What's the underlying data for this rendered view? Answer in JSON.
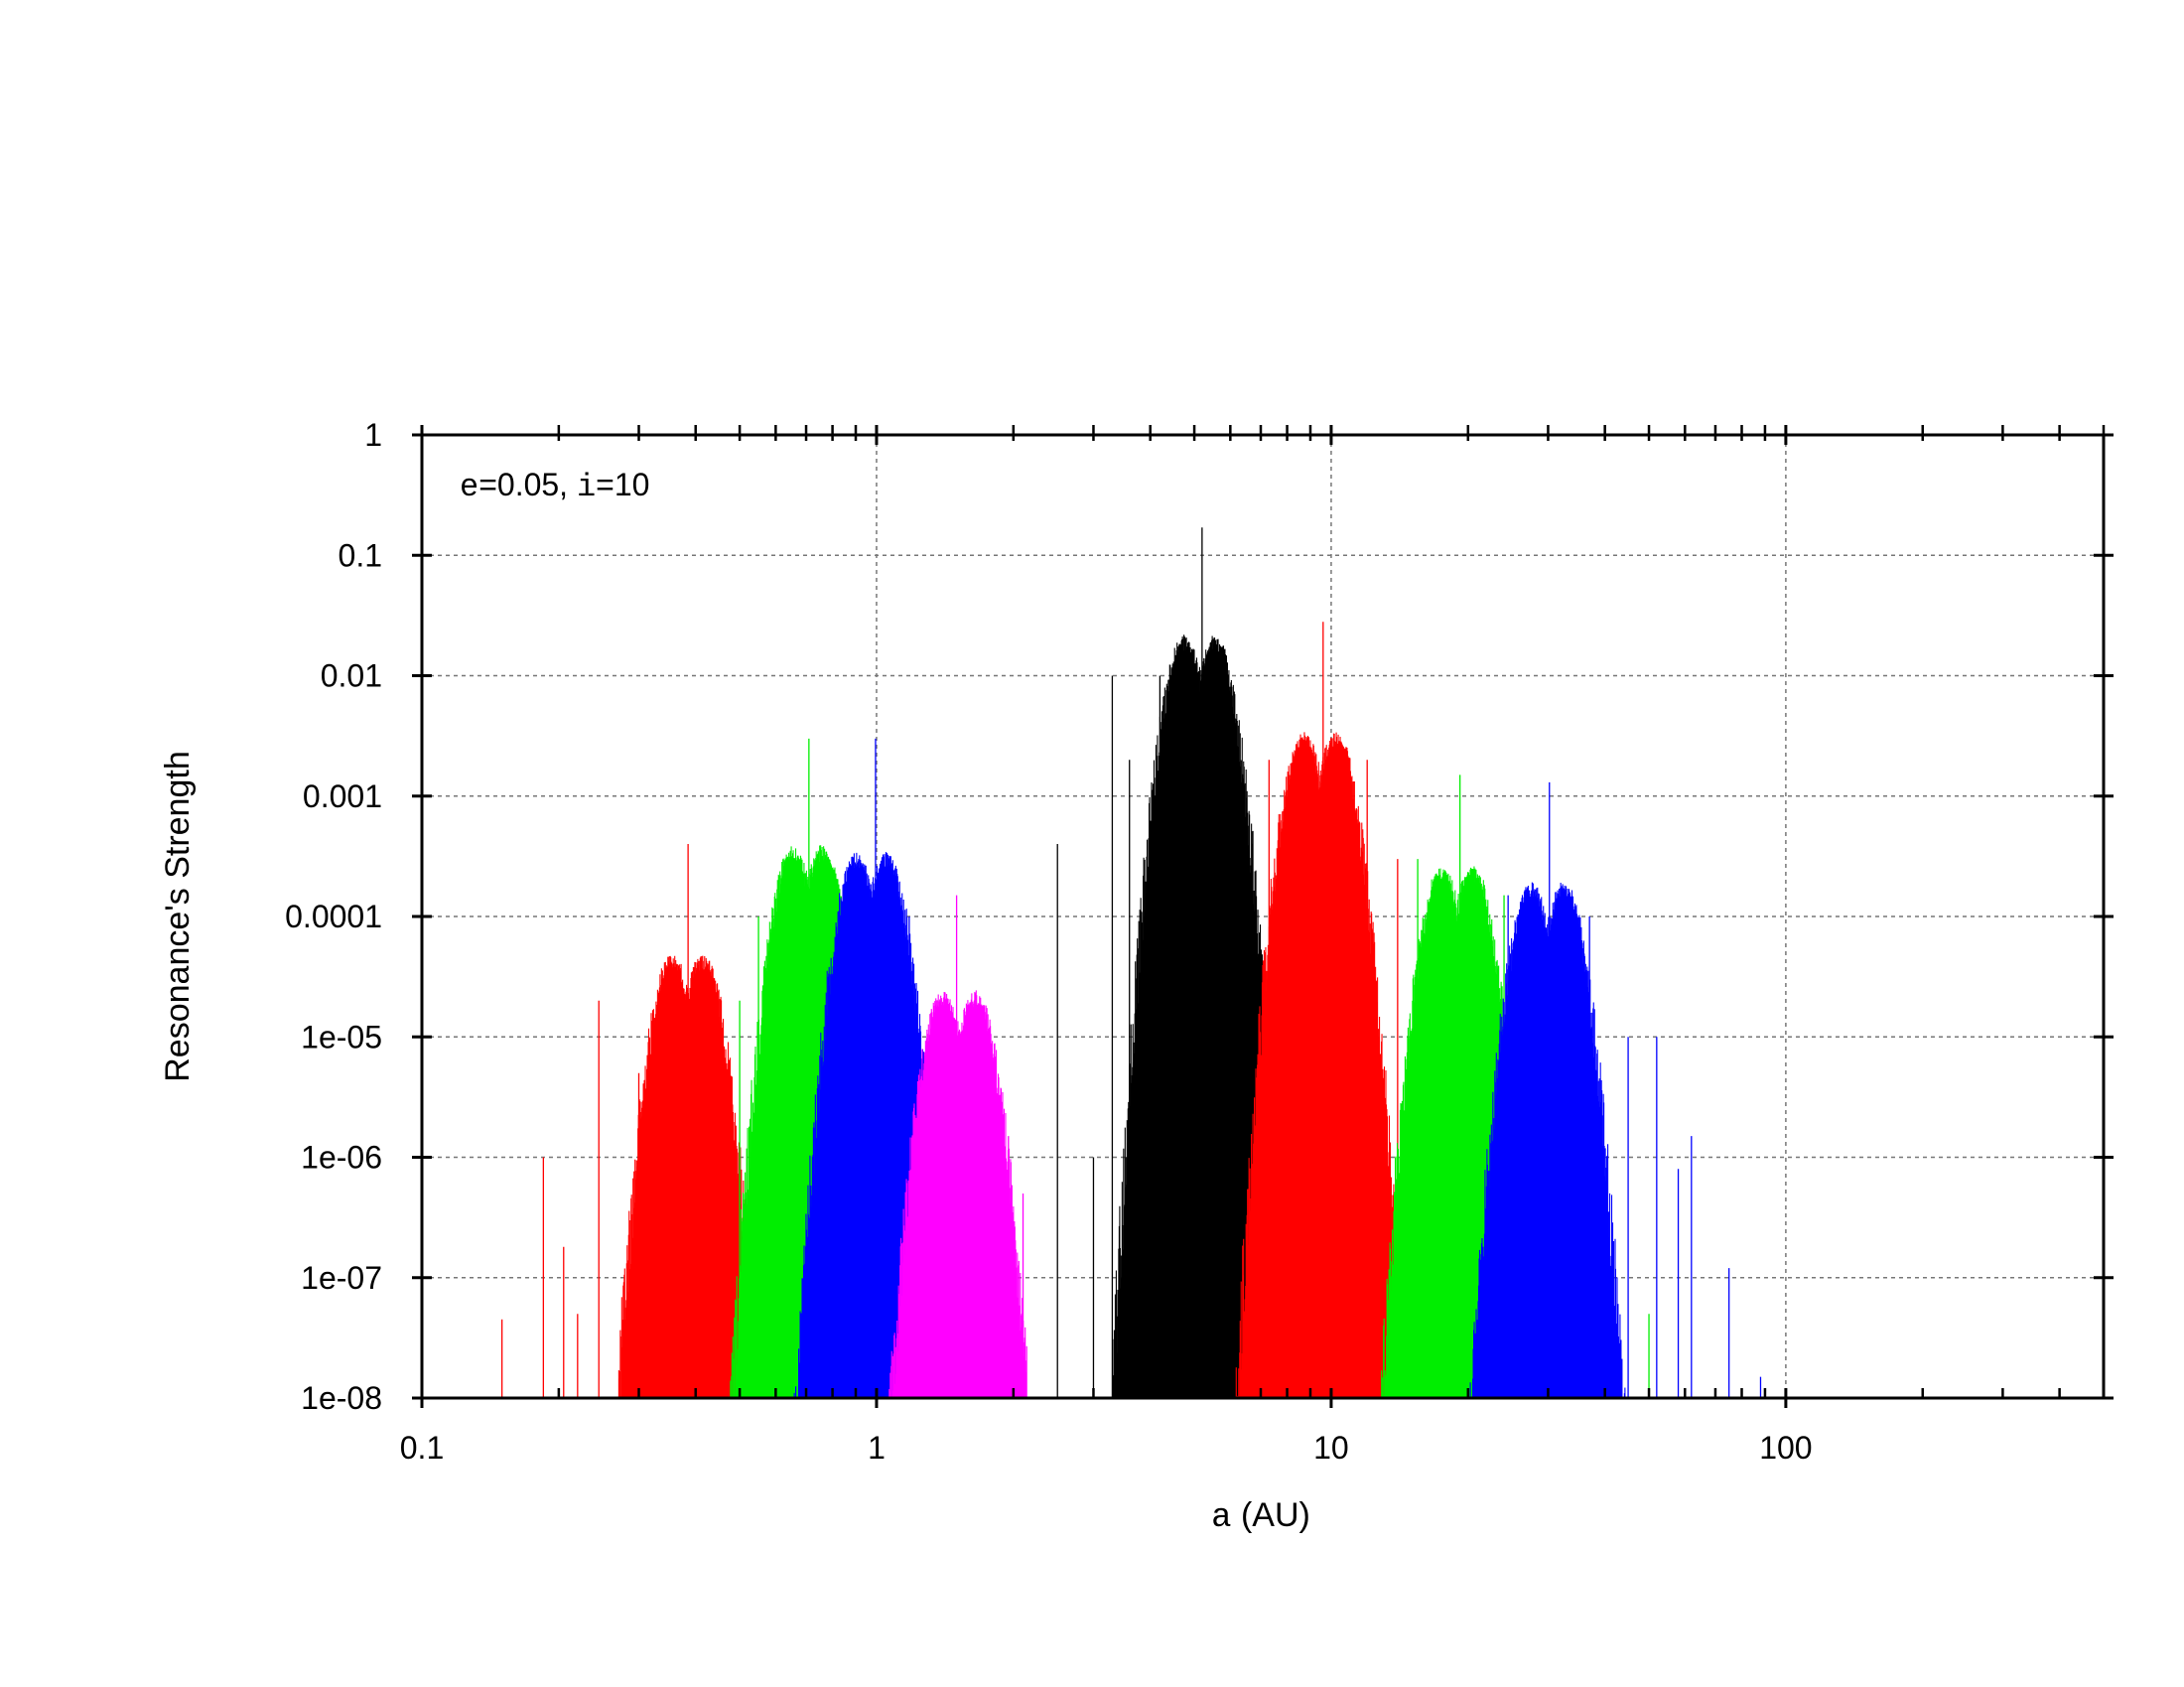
{
  "chart_data": {
    "type": "bar",
    "scale": {
      "x": "log",
      "y": "log"
    },
    "annotation": {
      "e_symbol": "e",
      "e_value": "=0.05, ",
      "i_symbol": "i",
      "i_value": "=10"
    },
    "xlabel": {
      "symbol": "a",
      "rest": " (AU)"
    },
    "ylabel": "Resonance's Strength",
    "xlim": [
      0.1,
      500
    ],
    "ylim": [
      1e-08,
      1
    ],
    "grid": true,
    "x_ticks": [
      "0.1",
      "1",
      "10",
      "100"
    ],
    "y_ticks": [
      "1e-08",
      "1e-07",
      "1e-06",
      "1e-05",
      "0.0001",
      "0.001",
      "0.01",
      "0.1",
      "1"
    ],
    "series": [
      {
        "color": "#ff0000",
        "clusters": [
          {
            "center": 0.355,
            "peak": 5e-05
          },
          {
            "center": 0.415,
            "peak": 5e-05
          }
        ],
        "spikes": [
          [
            0.15,
            4.5e-08
          ],
          [
            0.185,
            1e-06
          ],
          [
            0.205,
            1.8e-07
          ],
          [
            0.22,
            5e-08
          ],
          [
            0.245,
            2e-05
          ],
          [
            0.3,
            5e-06
          ],
          [
            0.385,
            0.0004
          ],
          [
            0.46,
            1e-06
          ]
        ]
      },
      {
        "color": "#00ee00",
        "clusters": [
          {
            "center": 0.655,
            "peak": 0.0004
          },
          {
            "center": 0.76,
            "peak": 0.0004
          }
        ],
        "spikes": [
          [
            0.5,
            2e-05
          ],
          [
            0.71,
            0.003
          ],
          [
            0.55,
            0.0001
          ]
        ]
      },
      {
        "color": "#0000ff",
        "clusters": [
          {
            "center": 0.905,
            "peak": 0.00035
          },
          {
            "center": 1.05,
            "peak": 0.00035
          }
        ],
        "spikes": [
          [
            0.995,
            0.003
          ],
          [
            1.18,
            0.0001
          ]
        ]
      },
      {
        "color": "#ff00ff",
        "clusters": [
          {
            "center": 1.4,
            "peak": 2.5e-05
          },
          {
            "center": 1.65,
            "peak": 2.5e-05
          }
        ],
        "spikes": [
          [
            1.5,
            0.00015
          ],
          [
            1.95,
            1.5e-06
          ],
          [
            2.1,
            5e-07
          ]
        ]
      },
      {
        "color": "#000000",
        "clusters": [
          {
            "center": 4.75,
            "peak": 0.022
          },
          {
            "center": 5.55,
            "peak": 0.022
          }
        ],
        "spikes": [
          [
            5.2,
            0.17
          ],
          [
            2.5,
            0.0004
          ],
          [
            3.3,
            0.01
          ],
          [
            3.0,
            1e-06
          ],
          [
            4.2,
            0.01
          ],
          [
            3.6,
            0.002
          ]
        ]
      },
      {
        "color": "#ff0000",
        "clusters": [
          {
            "center": 8.7,
            "peak": 0.0035
          },
          {
            "center": 10.25,
            "peak": 0.0035
          }
        ],
        "spikes": [
          [
            9.6,
            0.028
          ],
          [
            7.3,
            0.002
          ],
          [
            12.0,
            0.002
          ],
          [
            14.0,
            0.0003
          ]
        ]
      },
      {
        "color": "#00ee00",
        "clusters": [
          {
            "center": 17.5,
            "peak": 0.00027
          },
          {
            "center": 20.5,
            "peak": 0.00027
          }
        ],
        "spikes": [
          [
            19.2,
            0.0015
          ],
          [
            15.5,
            0.0003
          ],
          [
            24.0,
            0.00015
          ],
          [
            50.0,
            5e-08
          ]
        ]
      },
      {
        "color": "#0000ff",
        "clusters": [
          {
            "center": 27.5,
            "peak": 0.0002
          },
          {
            "center": 32.5,
            "peak": 0.0002
          }
        ],
        "spikes": [
          [
            30.2,
            0.0013
          ],
          [
            24.5,
            0.00015
          ],
          [
            37.0,
            0.0001
          ],
          [
            45.0,
            1e-05
          ],
          [
            52.0,
            1e-05
          ],
          [
            58.0,
            8e-07
          ],
          [
            62.0,
            1.5e-06
          ],
          [
            75.0,
            1.2e-07
          ],
          [
            88.0,
            1.5e-08
          ]
        ]
      }
    ]
  }
}
